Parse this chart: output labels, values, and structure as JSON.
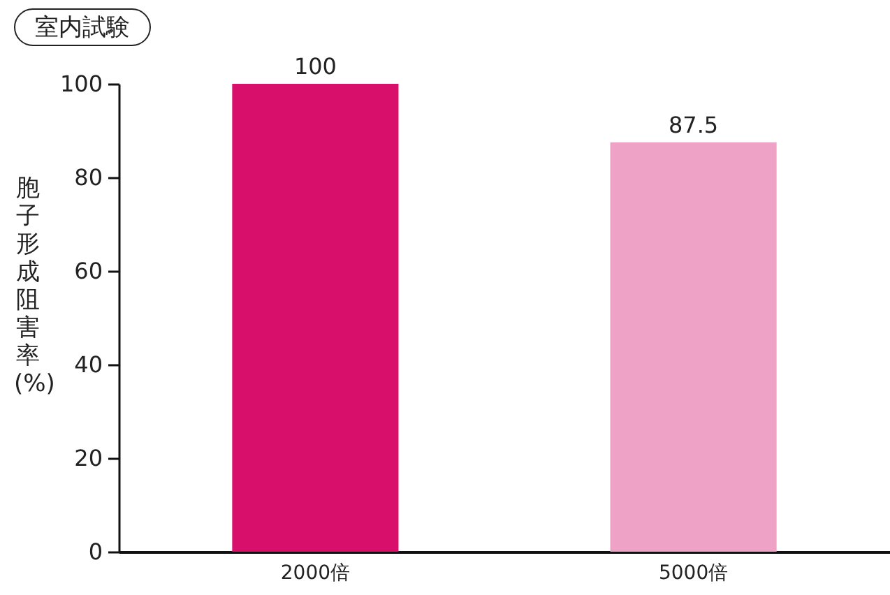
{
  "chart_data": {
    "type": "bar",
    "title": "室内試験",
    "ylabel": "胞子形成阻害率(%)",
    "categories": [
      "2000倍",
      "5000倍"
    ],
    "values": [
      100,
      87.5
    ],
    "colors": [
      "#d80f6b",
      "#eea2c6"
    ],
    "ylim": [
      0,
      100
    ],
    "yticks": [
      0,
      20,
      40,
      60,
      80,
      100
    ],
    "data_labels": true
  }
}
